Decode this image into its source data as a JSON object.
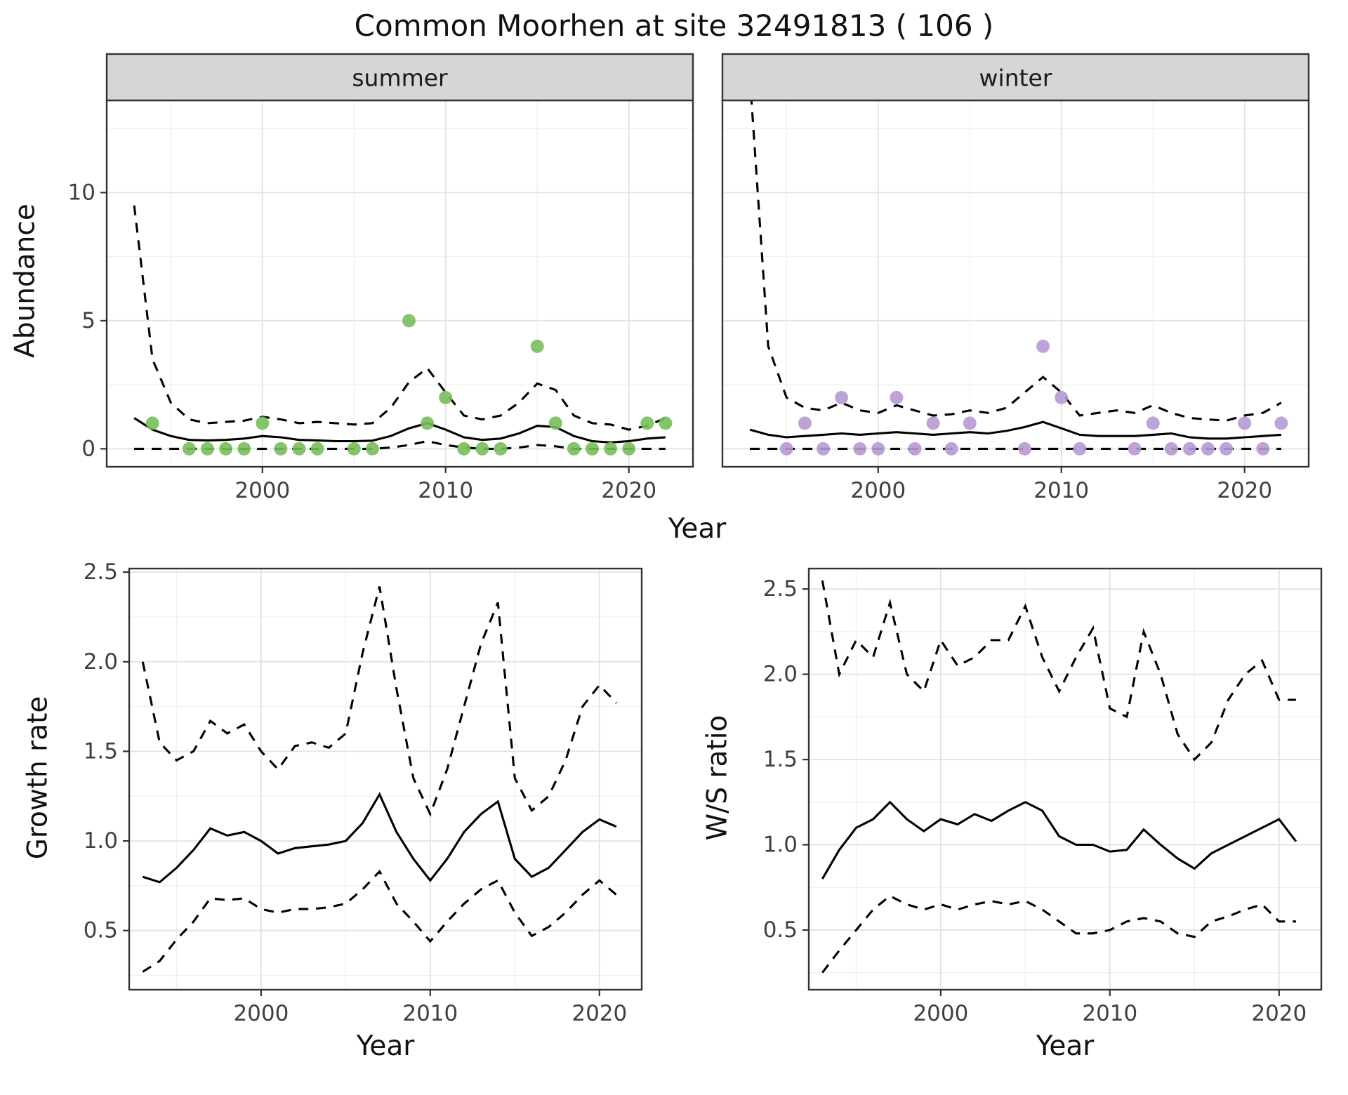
{
  "title": "Common Moorhen at site 32491813 ( 106 )",
  "labels": {
    "abundance": "Abundance",
    "year": "Year"
  },
  "colors": {
    "summer_point": "#78be5a",
    "winter_point": "#b699d1",
    "line": "#000000",
    "grid_major": "#e4e4e4",
    "grid_minor": "#f0f0f0",
    "strip_bg": "#d6d6d6",
    "panel_border": "#333333",
    "tick_label": "#404040"
  },
  "chart_data": [
    {
      "id": "abundance-summer",
      "type": "scatter",
      "facet_label": "summer",
      "xlabel": "Year",
      "ylabel": "Abundance",
      "xlim": [
        1991.5,
        2023.5
      ],
      "ylim": [
        -0.7,
        13.6
      ],
      "xticks": [
        2000,
        2010,
        2020
      ],
      "xtick_labels": [
        "2000",
        "2010",
        "2020"
      ],
      "yticks": [
        0,
        5,
        10
      ],
      "ytick_labels": [
        "0",
        "5",
        "10"
      ],
      "point_color": "#78be5a",
      "points": {
        "x": [
          1994,
          1996,
          1997,
          1998,
          1999,
          2000,
          2001,
          2002,
          2003,
          2005,
          2006,
          2008,
          2009,
          2010,
          2011,
          2012,
          2013,
          2015,
          2016,
          2017,
          2018,
          2019,
          2020,
          2021,
          2022
        ],
        "y": [
          1,
          0,
          0,
          0,
          0,
          1,
          0,
          0,
          0,
          0,
          0,
          5,
          1,
          2,
          0,
          0,
          0,
          4,
          1,
          0,
          0,
          0,
          0,
          1,
          1
        ]
      },
      "fit": {
        "x": [
          1993,
          1994,
          1995,
          1996,
          1997,
          1998,
          1999,
          2000,
          2001,
          2002,
          2003,
          2004,
          2005,
          2006,
          2007,
          2008,
          2009,
          2010,
          2011,
          2012,
          2013,
          2014,
          2015,
          2016,
          2017,
          2018,
          2019,
          2020,
          2021,
          2022
        ],
        "y": [
          1.2,
          0.75,
          0.5,
          0.35,
          0.33,
          0.35,
          0.4,
          0.5,
          0.45,
          0.35,
          0.33,
          0.3,
          0.3,
          0.32,
          0.5,
          0.8,
          1.0,
          0.75,
          0.45,
          0.35,
          0.4,
          0.6,
          0.9,
          0.85,
          0.5,
          0.3,
          0.25,
          0.3,
          0.4,
          0.45
        ]
      },
      "upper": {
        "x": [
          1993,
          1994,
          1995,
          1996,
          1997,
          1998,
          1999,
          2000,
          2001,
          2002,
          2003,
          2004,
          2005,
          2006,
          2007,
          2008,
          2009,
          2010,
          2011,
          2012,
          2013,
          2014,
          2015,
          2016,
          2017,
          2018,
          2019,
          2020,
          2021,
          2022
        ],
        "y": [
          9.5,
          3.5,
          1.8,
          1.15,
          1.0,
          1.05,
          1.1,
          1.25,
          1.15,
          1.0,
          1.05,
          1.0,
          0.95,
          1.0,
          1.6,
          2.6,
          3.15,
          2.2,
          1.3,
          1.15,
          1.3,
          1.8,
          2.55,
          2.3,
          1.3,
          1.0,
          0.95,
          0.75,
          0.9,
          1.2
        ]
      },
      "lower": {
        "x": [
          1993,
          1994,
          1995,
          1996,
          1997,
          1998,
          1999,
          2000,
          2001,
          2002,
          2003,
          2004,
          2005,
          2006,
          2007,
          2008,
          2009,
          2010,
          2011,
          2012,
          2013,
          2014,
          2015,
          2016,
          2017,
          2018,
          2019,
          2020,
          2021,
          2022
        ],
        "y": [
          0,
          0,
          0,
          0,
          0,
          0,
          0,
          0,
          0,
          0,
          0,
          0,
          0,
          0,
          0.05,
          0.15,
          0.3,
          0.15,
          0.05,
          0,
          0,
          0.05,
          0.15,
          0.1,
          0,
          0,
          0,
          0,
          0,
          0
        ]
      }
    },
    {
      "id": "abundance-winter",
      "type": "scatter",
      "facet_label": "winter",
      "xlabel": "Year",
      "ylabel": "Abundance",
      "xlim": [
        1991.5,
        2023.5
      ],
      "ylim": [
        -0.7,
        13.6
      ],
      "xticks": [
        2000,
        2010,
        2020
      ],
      "xtick_labels": [
        "2000",
        "2010",
        "2020"
      ],
      "yticks": [
        0,
        5,
        10
      ],
      "ytick_labels": [
        "0",
        "5",
        "10"
      ],
      "point_color": "#b699d1",
      "points": {
        "x": [
          1995,
          1996,
          1997,
          1998,
          1999,
          2000,
          2001,
          2002,
          2003,
          2004,
          2005,
          2008,
          2009,
          2010,
          2011,
          2014,
          2015,
          2016,
          2017,
          2018,
          2019,
          2020,
          2021,
          2022
        ],
        "y": [
          0,
          1,
          0,
          2,
          0,
          0,
          2,
          0,
          1,
          0,
          1,
          0,
          4,
          2,
          0,
          0,
          1,
          0,
          0,
          0,
          0,
          1,
          0,
          1
        ]
      },
      "fit": {
        "x": [
          1993,
          1994,
          1995,
          1996,
          1997,
          1998,
          1999,
          2000,
          2001,
          2002,
          2003,
          2004,
          2005,
          2006,
          2007,
          2008,
          2009,
          2010,
          2011,
          2012,
          2013,
          2014,
          2015,
          2016,
          2017,
          2018,
          2019,
          2020,
          2021,
          2022
        ],
        "y": [
          0.75,
          0.55,
          0.45,
          0.5,
          0.55,
          0.6,
          0.55,
          0.6,
          0.65,
          0.6,
          0.55,
          0.6,
          0.65,
          0.6,
          0.7,
          0.85,
          1.05,
          0.8,
          0.55,
          0.5,
          0.5,
          0.5,
          0.55,
          0.6,
          0.45,
          0.4,
          0.4,
          0.45,
          0.5,
          0.55
        ]
      },
      "upper": {
        "x": [
          1993,
          1994,
          1995,
          1996,
          1997,
          1998,
          1999,
          2000,
          2001,
          2002,
          2003,
          2004,
          2005,
          2006,
          2007,
          2008,
          2009,
          2010,
          2011,
          2012,
          2013,
          2014,
          2015,
          2016,
          2017,
          2018,
          2019,
          2020,
          2021,
          2022
        ],
        "y": [
          14.5,
          4.0,
          2.0,
          1.6,
          1.5,
          1.8,
          1.5,
          1.4,
          1.7,
          1.5,
          1.3,
          1.35,
          1.5,
          1.4,
          1.6,
          2.2,
          2.8,
          2.2,
          1.3,
          1.4,
          1.5,
          1.4,
          1.7,
          1.4,
          1.2,
          1.15,
          1.1,
          1.3,
          1.4,
          1.8
        ]
      },
      "lower": {
        "x": [
          1993,
          1994,
          1995,
          1996,
          1997,
          1998,
          1999,
          2000,
          2001,
          2002,
          2003,
          2004,
          2005,
          2006,
          2007,
          2008,
          2009,
          2010,
          2011,
          2012,
          2013,
          2014,
          2015,
          2016,
          2017,
          2018,
          2019,
          2020,
          2021,
          2022
        ],
        "y": [
          0,
          0,
          0,
          0,
          0,
          0,
          0,
          0,
          0,
          0,
          0,
          0,
          0,
          0,
          0,
          0,
          0,
          0,
          0,
          0,
          0,
          0,
          0,
          0,
          0,
          0,
          0,
          0,
          0,
          0
        ]
      }
    },
    {
      "id": "growth-rate",
      "type": "line",
      "xlabel": "Year",
      "ylabel": "Growth rate",
      "xlim": [
        1992.2,
        2022.5
      ],
      "ylim": [
        0.17,
        2.52
      ],
      "xticks": [
        2000,
        2010,
        2020
      ],
      "xtick_labels": [
        "2000",
        "2010",
        "2020"
      ],
      "yticks": [
        0.5,
        1.0,
        1.5,
        2.0,
        2.5
      ],
      "ytick_labels": [
        "0.5",
        "1.0",
        "1.5",
        "2.0",
        "2.5"
      ],
      "fit": {
        "x": [
          1993,
          1994,
          1995,
          1996,
          1997,
          1998,
          1999,
          2000,
          2001,
          2002,
          2003,
          2004,
          2005,
          2006,
          2007,
          2008,
          2009,
          2010,
          2011,
          2012,
          2013,
          2014,
          2015,
          2016,
          2017,
          2018,
          2019,
          2020,
          2021
        ],
        "y": [
          0.8,
          0.77,
          0.85,
          0.95,
          1.07,
          1.03,
          1.05,
          1.0,
          0.93,
          0.96,
          0.97,
          0.98,
          1.0,
          1.1,
          1.26,
          1.05,
          0.9,
          0.78,
          0.9,
          1.05,
          1.15,
          1.22,
          0.9,
          0.8,
          0.85,
          0.95,
          1.05,
          1.12,
          1.08
        ]
      },
      "upper": {
        "x": [
          1993,
          1994,
          1995,
          1996,
          1997,
          1998,
          1999,
          2000,
          2001,
          2002,
          2003,
          2004,
          2005,
          2006,
          2007,
          2008,
          2009,
          2010,
          2011,
          2012,
          2013,
          2014,
          2015,
          2016,
          2017,
          2018,
          2019,
          2020,
          2021
        ],
        "y": [
          2.0,
          1.55,
          1.45,
          1.5,
          1.67,
          1.6,
          1.65,
          1.5,
          1.4,
          1.53,
          1.55,
          1.52,
          1.6,
          2.05,
          2.42,
          1.85,
          1.35,
          1.15,
          1.4,
          1.75,
          2.1,
          2.33,
          1.35,
          1.17,
          1.25,
          1.45,
          1.75,
          1.87,
          1.77
        ]
      },
      "lower": {
        "x": [
          1993,
          1994,
          1995,
          1996,
          1997,
          1998,
          1999,
          2000,
          2001,
          2002,
          2003,
          2004,
          2005,
          2006,
          2007,
          2008,
          2009,
          2010,
          2011,
          2012,
          2013,
          2014,
          2015,
          2016,
          2017,
          2018,
          2019,
          2020,
          2021
        ],
        "y": [
          0.27,
          0.33,
          0.45,
          0.55,
          0.68,
          0.67,
          0.68,
          0.62,
          0.6,
          0.62,
          0.62,
          0.63,
          0.65,
          0.73,
          0.83,
          0.65,
          0.55,
          0.44,
          0.55,
          0.65,
          0.73,
          0.78,
          0.6,
          0.47,
          0.52,
          0.6,
          0.7,
          0.78,
          0.7
        ]
      }
    },
    {
      "id": "ws-ratio",
      "type": "line",
      "xlabel": "Year",
      "ylabel": "W/S ratio",
      "xlim": [
        1992.2,
        2022.5
      ],
      "ylim": [
        0.15,
        2.62
      ],
      "xticks": [
        2000,
        2010,
        2020
      ],
      "xtick_labels": [
        "2000",
        "2010",
        "2020"
      ],
      "yticks": [
        0.5,
        1.0,
        1.5,
        2.0,
        2.5
      ],
      "ytick_labels": [
        "0.5",
        "1.0",
        "1.5",
        "2.0",
        "2.5"
      ],
      "fit": {
        "x": [
          1993,
          1994,
          1995,
          1996,
          1997,
          1998,
          1999,
          2000,
          2001,
          2002,
          2003,
          2004,
          2005,
          2006,
          2007,
          2008,
          2009,
          2010,
          2011,
          2012,
          2013,
          2014,
          2015,
          2016,
          2017,
          2018,
          2019,
          2020,
          2021
        ],
        "y": [
          0.8,
          0.97,
          1.1,
          1.15,
          1.25,
          1.15,
          1.08,
          1.15,
          1.12,
          1.18,
          1.14,
          1.2,
          1.25,
          1.2,
          1.05,
          1.0,
          1.0,
          0.96,
          0.97,
          1.09,
          1.0,
          0.92,
          0.86,
          0.95,
          1.0,
          1.05,
          1.1,
          1.15,
          1.02
        ]
      },
      "upper": {
        "x": [
          1993,
          1994,
          1995,
          1996,
          1997,
          1998,
          1999,
          2000,
          2001,
          2002,
          2003,
          2004,
          2005,
          2006,
          2007,
          2008,
          2009,
          2010,
          2011,
          2012,
          2013,
          2014,
          2015,
          2016,
          2017,
          2018,
          2019,
          2020,
          2021
        ],
        "y": [
          2.55,
          2.0,
          2.2,
          2.1,
          2.42,
          2.0,
          1.9,
          2.2,
          2.05,
          2.1,
          2.2,
          2.2,
          2.4,
          2.1,
          1.9,
          2.1,
          2.27,
          1.8,
          1.75,
          2.25,
          2.0,
          1.65,
          1.5,
          1.6,
          1.85,
          2.0,
          2.08,
          1.85,
          1.85
        ]
      },
      "lower": {
        "x": [
          1993,
          1994,
          1995,
          1996,
          1997,
          1998,
          1999,
          2000,
          2001,
          2002,
          2003,
          2004,
          2005,
          2006,
          2007,
          2008,
          2009,
          2010,
          2011,
          2012,
          2013,
          2014,
          2015,
          2016,
          2017,
          2018,
          2019,
          2020,
          2021
        ],
        "y": [
          0.25,
          0.38,
          0.5,
          0.62,
          0.7,
          0.65,
          0.62,
          0.65,
          0.62,
          0.65,
          0.67,
          0.65,
          0.67,
          0.62,
          0.55,
          0.48,
          0.48,
          0.5,
          0.55,
          0.57,
          0.55,
          0.48,
          0.46,
          0.55,
          0.58,
          0.62,
          0.65,
          0.55,
          0.55
        ]
      }
    }
  ]
}
